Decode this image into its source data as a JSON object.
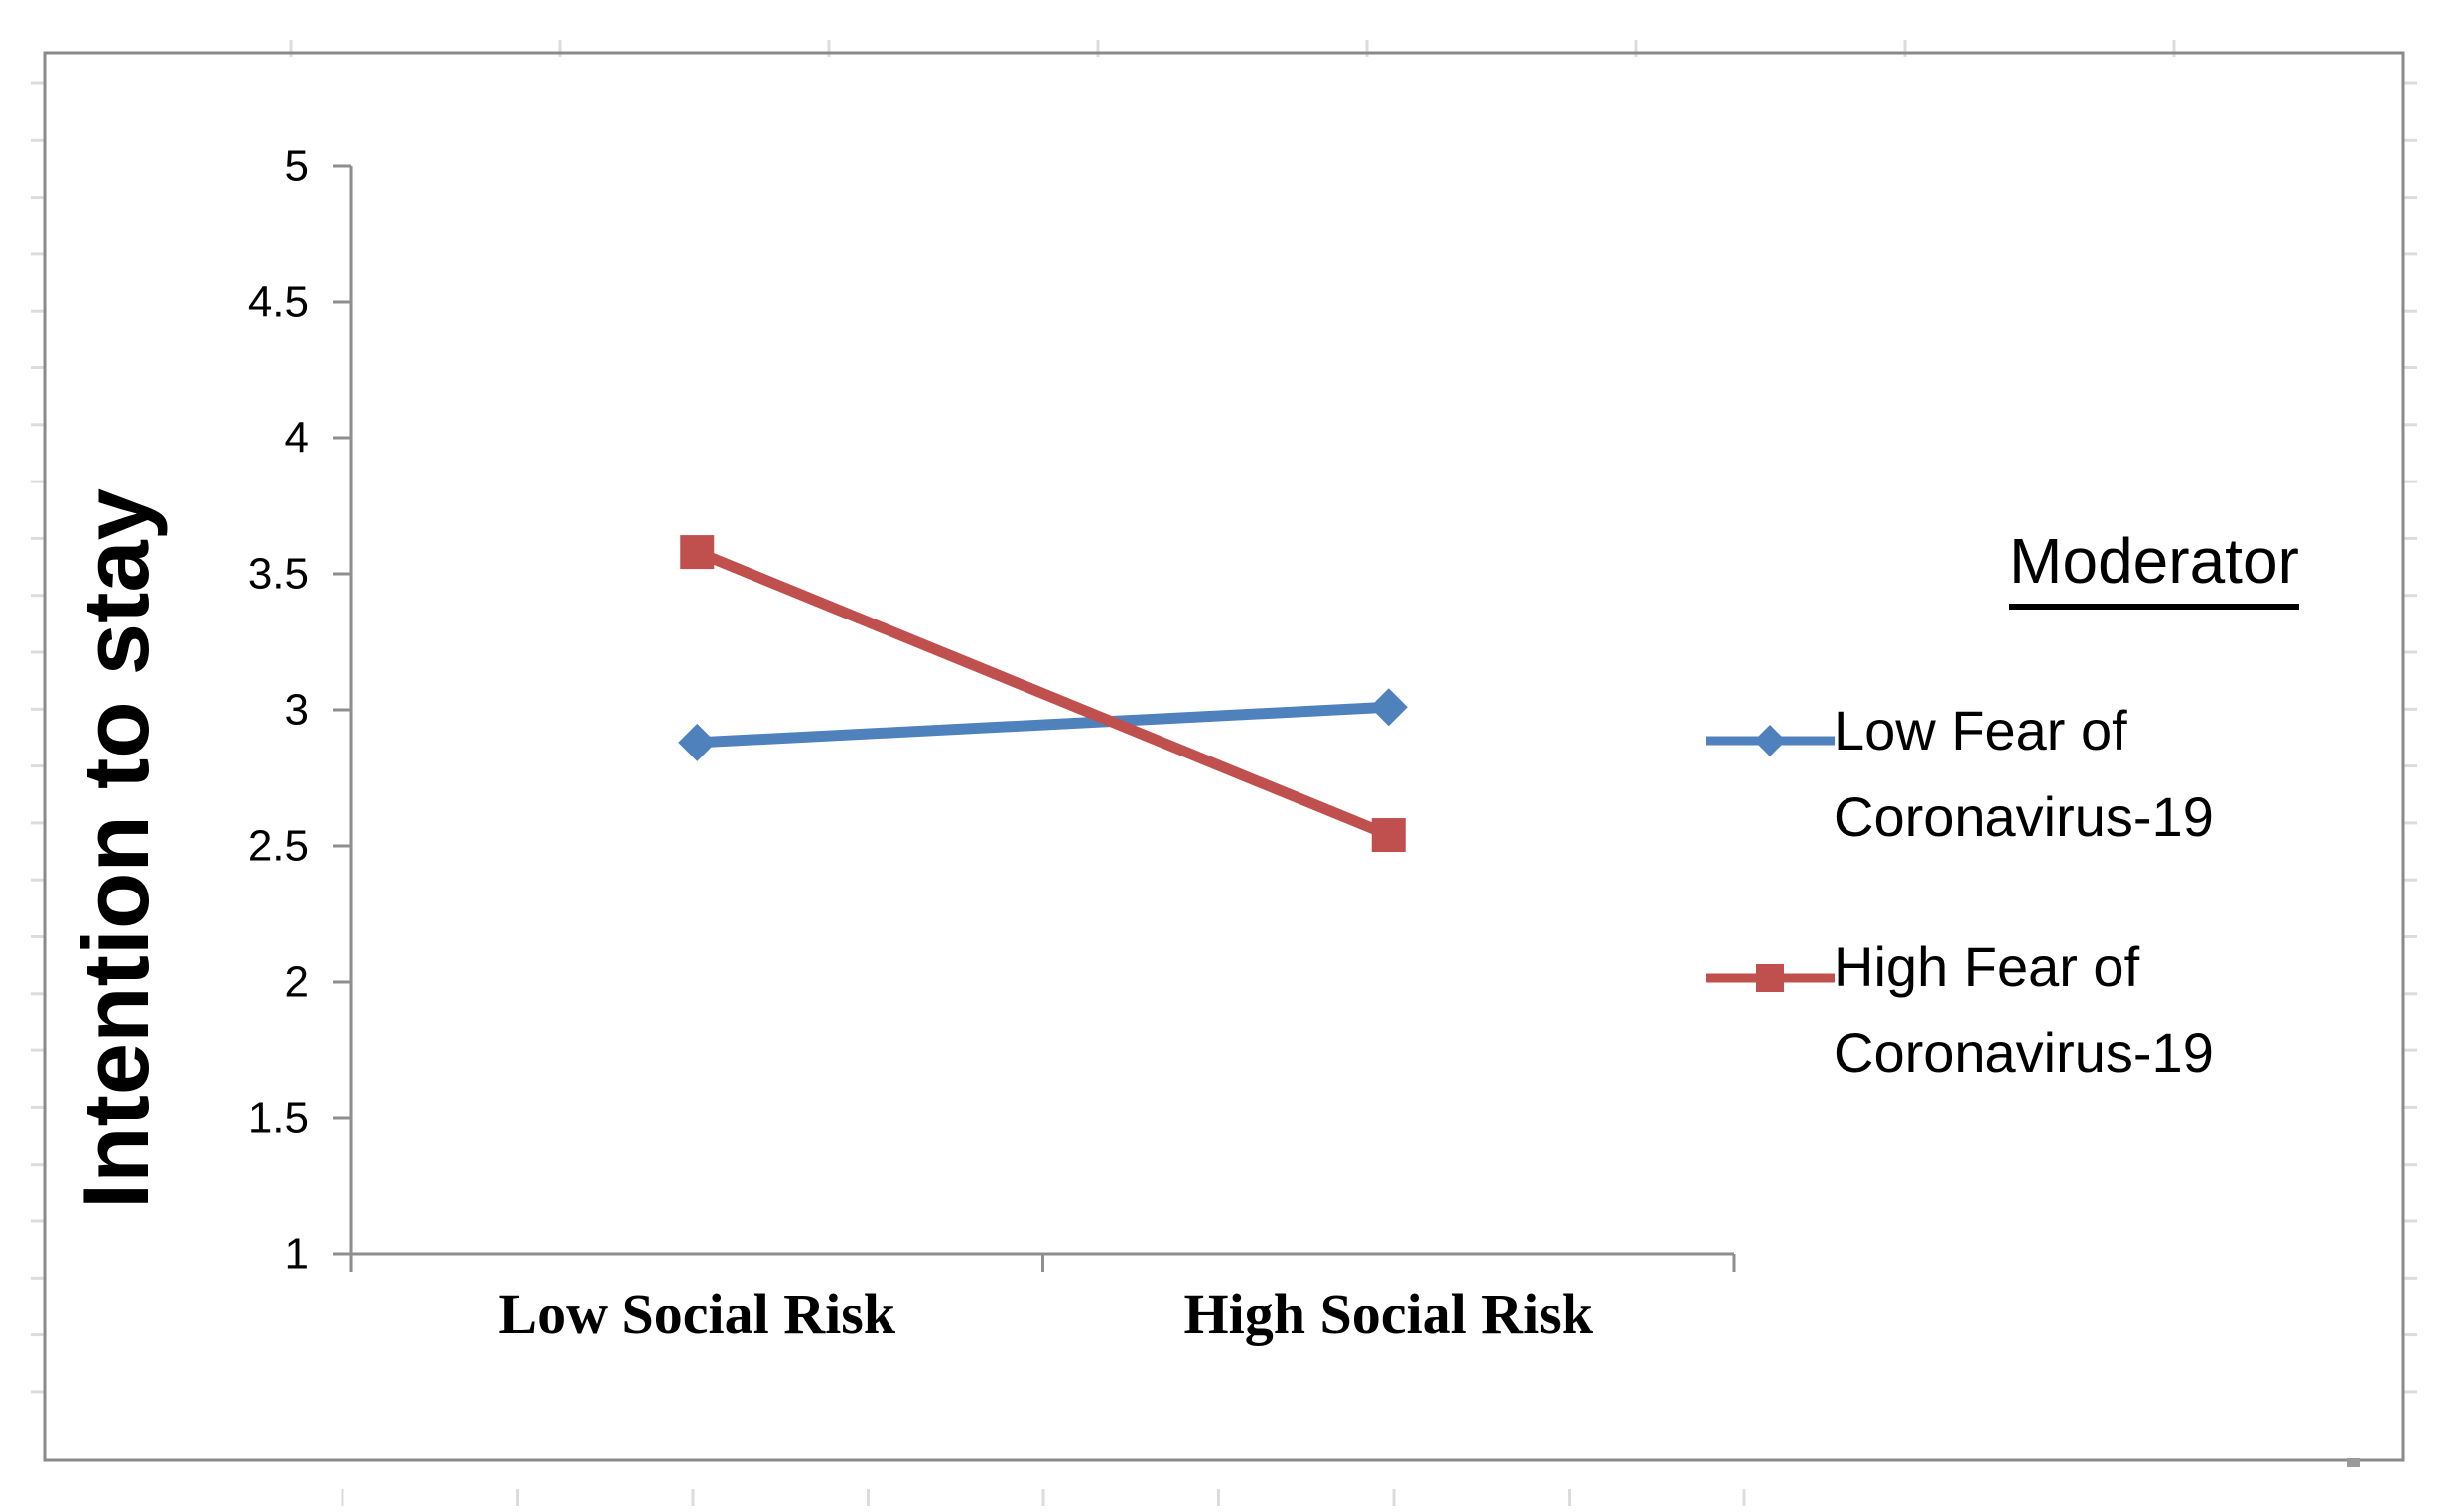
{
  "chart_data": {
    "type": "line",
    "categories": [
      "Low Social Risk",
      "High Social Risk"
    ],
    "series": [
      {
        "name": "Low Fear of Coronavirus-19",
        "values": [
          2.88,
          3.01
        ],
        "color": "#4F81BD",
        "marker": "diamond"
      },
      {
        "name": "High Fear of Coronavirus-19",
        "values": [
          3.58,
          2.54
        ],
        "color": "#C0504D",
        "marker": "square"
      }
    ],
    "ylabel": "Intention to stay",
    "ylim": [
      1,
      5
    ],
    "yticks": [
      1,
      1.5,
      2,
      2.5,
      3,
      3.5,
      4,
      4.5,
      5
    ],
    "grid": false,
    "legend": {
      "title": "Moderator",
      "position": "right"
    }
  },
  "colors": {
    "axis": "#8E8E8E",
    "border": "#8A8A8A",
    "ruler_tick": "#DCDCDC",
    "text": "#000000"
  }
}
